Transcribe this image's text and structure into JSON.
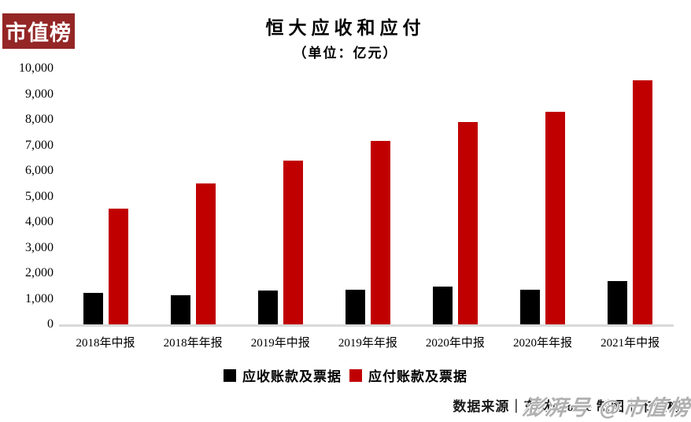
{
  "brand": {
    "logo_text": "市值榜",
    "logo_bg": "#942626",
    "logo_text_color": "#ffffff"
  },
  "header": {
    "title": "恒大应收和应付",
    "subtitle": "（单位：亿元）"
  },
  "chart_data": {
    "type": "bar",
    "categories": [
      "2018年中报",
      "2018年年报",
      "2019年中报",
      "2019年年报",
      "2020年中报",
      "2020年年报",
      "2021年中报"
    ],
    "series": [
      {
        "name": "应收账款及票据",
        "color": "#000000",
        "values": [
          1250,
          1180,
          1350,
          1400,
          1500,
          1380,
          1720
        ]
      },
      {
        "name": "应付账款及票据",
        "color": "#c00000",
        "values": [
          4550,
          5540,
          6430,
          7190,
          7950,
          8340,
          9580
        ]
      }
    ],
    "title": "恒大应收和应付",
    "subtitle": "（单位：亿元）",
    "xlabel": "",
    "ylabel": "",
    "ylim": [
      0,
      10000
    ],
    "y_tick_step": 1000,
    "y_tick_labels": [
      "0",
      "1,000",
      "2,000",
      "3,000",
      "4,000",
      "5,000",
      "6,000",
      "7,000",
      "8,000",
      "9,000",
      "10,000"
    ],
    "grid": false,
    "legend_position": "bottom"
  },
  "footer": {
    "source_text": "数据来源｜东财choice  制图｜市值榜",
    "watermark": "澎湃号 @市值榜"
  }
}
